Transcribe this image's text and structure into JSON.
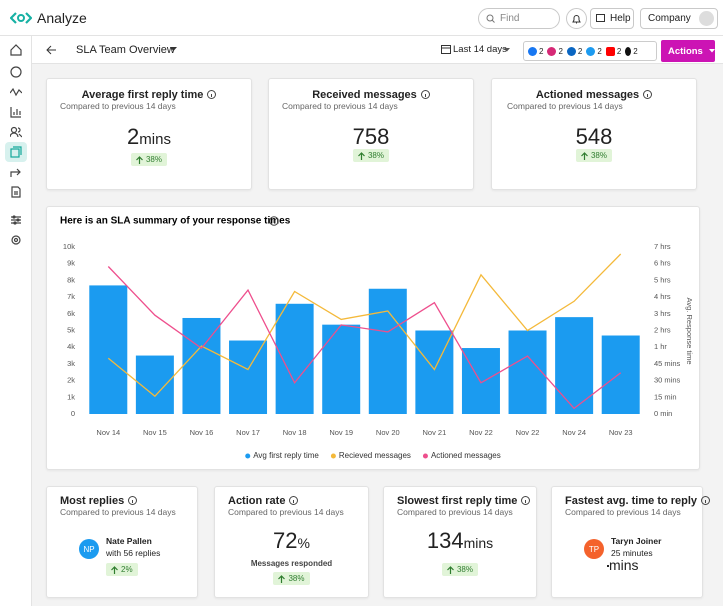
{
  "header": {
    "app_name": "Analyze",
    "search_placeholder": "Find",
    "help": "Help",
    "account": "Company"
  },
  "toolbar": {
    "report_title": "SLA Team Overview",
    "date_range": "Last 14 days",
    "network_counts": [
      2,
      2,
      2,
      2,
      2,
      2
    ],
    "actions": "Actions"
  },
  "kpis": [
    {
      "title": "Average first reply time",
      "subtitle": "Compared to previous 14 days",
      "value": 2,
      "unit": "mins",
      "change": "38%"
    },
    {
      "title": "Received messages",
      "subtitle": "Compared to previous 14 days",
      "value": 758,
      "change": "38%"
    },
    {
      "title": "Actioned messages",
      "subtitle": "Compared to previous 14 days",
      "value": 548,
      "change": "38%"
    }
  ],
  "chart_data": {
    "type": "bar",
    "title": "Here is an SLA summary of your response times",
    "categories": [
      "Nov 14",
      "Nov 15",
      "Nov 16",
      "Nov 17",
      "Nov 18",
      "Nov 19",
      "Nov 20",
      "Nov 21",
      "Nov 22",
      "Nov 22",
      "Nov 24",
      "Nov 23"
    ],
    "series": [
      {
        "name": "Avg first reply time",
        "type": "bar",
        "color": "#1b9bf0",
        "values": [
          7700,
          3500,
          5750,
          4400,
          6600,
          5350,
          7500,
          5000,
          3950,
          5000,
          5800,
          4700
        ]
      },
      {
        "name": "Recieved messages",
        "type": "line",
        "axis": "y2",
        "color": "#f4b93a",
        "values": [
          50,
          16,
          64,
          40,
          260,
          160,
          190,
          40,
          320,
          120,
          225,
          395
        ]
      },
      {
        "name": "Actioned messages",
        "type": "line",
        "axis": "y2",
        "color": "#ee4f8d",
        "values": [
          350,
          175,
          59,
          265,
          28,
          140,
          115,
          220,
          28,
          52,
          5,
          37
        ]
      }
    ],
    "ylim": [
      0,
      10000
    ],
    "yticks": [
      0,
      {
        "value": 1000,
        "label": "1k"
      },
      {
        "value": 2000,
        "label": "2k"
      },
      {
        "value": 3000,
        "label": "3k"
      },
      {
        "value": 4000,
        "label": "4k"
      },
      {
        "value": 5000,
        "label": "5k"
      },
      {
        "value": 6000,
        "label": "6k"
      },
      {
        "value": 7000,
        "label": "7k"
      },
      {
        "value": 8000,
        "label": "8k"
      },
      {
        "value": 9000,
        "label": "9k"
      },
      {
        "value": 10000,
        "label": "10k"
      }
    ],
    "y2lim": [
      0,
      420
    ],
    "y2ticks": [
      {
        "value": 0,
        "label": "0 min"
      },
      {
        "value": 15,
        "label": "15 min"
      },
      {
        "value": 30,
        "label": "30 mins"
      },
      {
        "value": 45,
        "label": "45 mins"
      },
      {
        "value": 60,
        "label": "1 hr"
      },
      {
        "value": 120,
        "label": "2 hrs"
      },
      {
        "value": 180,
        "label": "3 hrs"
      },
      {
        "value": 240,
        "label": "4 hrs"
      },
      {
        "value": 300,
        "label": "5 hrs"
      },
      {
        "value": 360,
        "label": "6 hrs"
      },
      {
        "value": 420,
        "label": "7 hrs"
      }
    ],
    "y2label": "Avg. Response time",
    "legend": "bottom"
  },
  "summary_cards": [
    {
      "title": "Most replies",
      "subtitle": "Compared to previous 14 days",
      "initials": "NP",
      "name": "Nate Pallen",
      "detail": "with 56 replies",
      "change": "2%"
    },
    {
      "title": "Action rate",
      "subtitle": "Compared to previous 14 days",
      "value": 72,
      "unit": "%",
      "caption": "Messages responded",
      "change": "38%"
    },
    {
      "title": "Slowest first reply time",
      "subtitle": "Compared to previous 14 days",
      "value": 134,
      "unit": "mins",
      "change": "38%"
    },
    {
      "title": "Fastest avg. time to reply",
      "subtitle": "Compared to previous 14 days",
      "initials": "TP",
      "name": "Taryn Joiner",
      "detail": "25 minutes",
      "unit": "mins"
    }
  ]
}
